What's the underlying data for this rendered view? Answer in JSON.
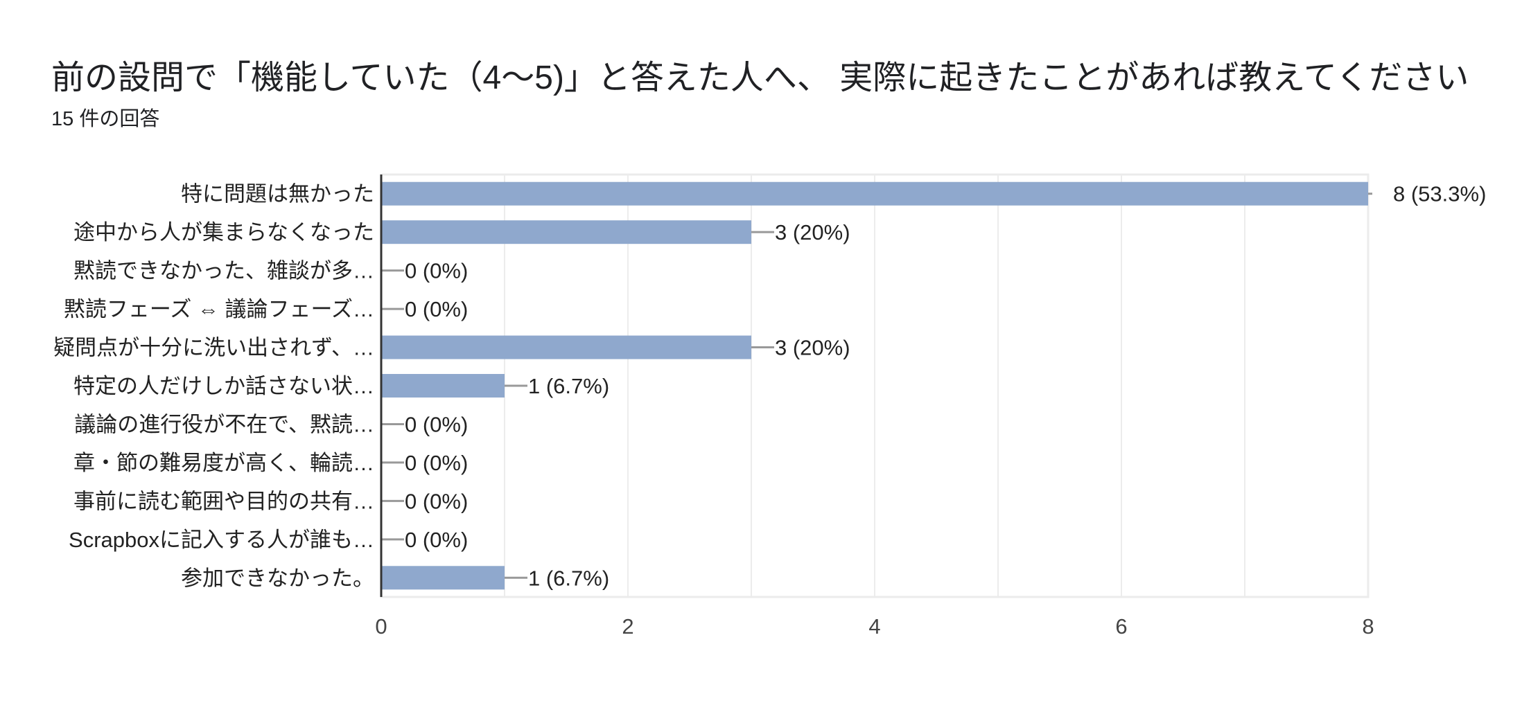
{
  "chart_data": {
    "type": "bar",
    "orientation": "horizontal",
    "title": "前の設問で「機能していた（4～5)」と答えた人へ、 実際に起きたことがあれば教えてください",
    "subtitle": "15 件の回答",
    "categories": [
      "特に問題は無かった",
      "途中から人が集まらなくなった",
      "黙読できなかった、雑談が多…",
      "黙読フェーズ ⇔ 議論フェーズ…",
      "疑問点が十分に洗い出されず、…",
      "特定の人だけしか話さない状…",
      "議論の進行役が不在で、黙読…",
      "章・節の難易度が高く、輪読…",
      "事前に読む範囲や目的の共有…",
      "Scrapboxに記入する人が誰も…",
      "参加できなかった。"
    ],
    "values": [
      8,
      3,
      0,
      0,
      3,
      1,
      0,
      0,
      0,
      0,
      1
    ],
    "data_labels": [
      "8 (53.3%)",
      "3 (20%)",
      "0 (0%)",
      "0 (0%)",
      "3 (20%)",
      "1 (6.7%)",
      "0 (0%)",
      "0 (0%)",
      "0 (0%)",
      "0 (0%)",
      "1 (6.7%)"
    ],
    "xlim": [
      0,
      8
    ],
    "xticks": [
      "0",
      "2",
      "4",
      "6",
      "8"
    ],
    "xlabel": "",
    "ylabel": "",
    "grid": true,
    "bar_color": "#8fa8cd"
  }
}
